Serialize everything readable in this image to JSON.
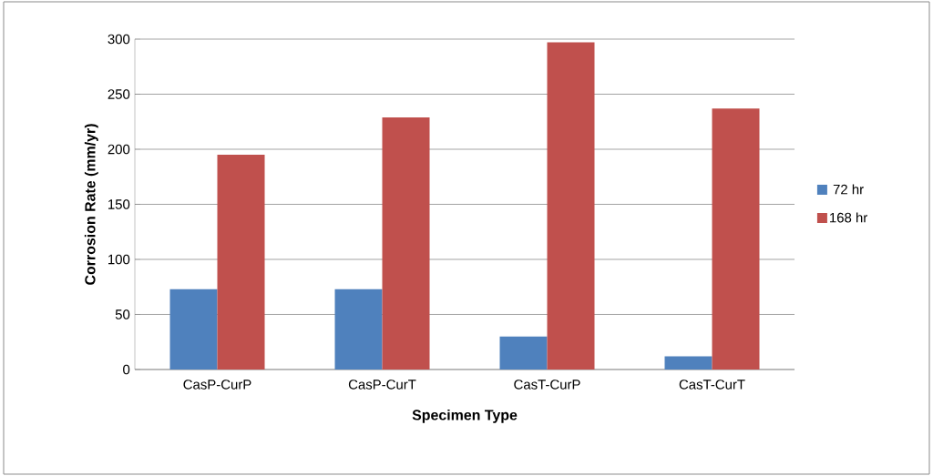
{
  "chart_data": {
    "type": "bar",
    "xlabel": "Specimen Type",
    "ylabel": "Corrosion Rate (mm/yr)",
    "categories": [
      "CasP-CurP",
      "CasP-CurT",
      "CasT-CurP",
      "CasT-CurT"
    ],
    "series": [
      {
        "name": "72 hr",
        "color": "#4f81bd",
        "values": [
          73,
          73,
          30,
          12
        ]
      },
      {
        "name": "168 hr",
        "color": "#c0504d",
        "values": [
          195,
          229,
          297,
          237
        ]
      }
    ],
    "ylim": [
      0,
      300
    ],
    "yticks": [
      0,
      50,
      100,
      150,
      200,
      250,
      300
    ],
    "grid": "y",
    "legend": "right"
  }
}
